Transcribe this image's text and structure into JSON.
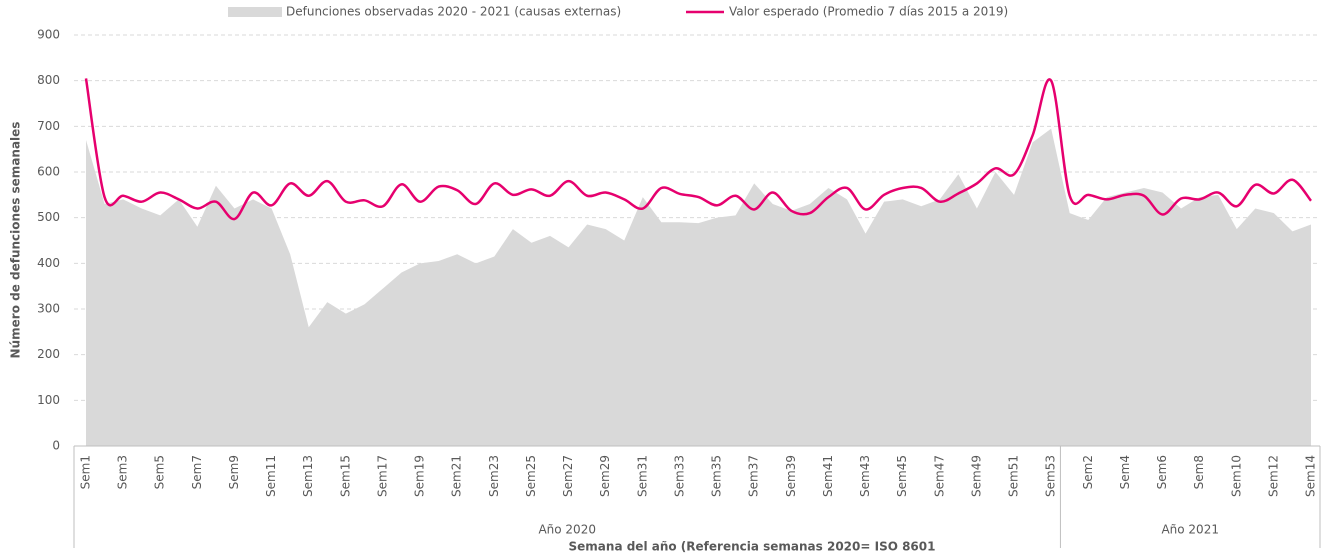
{
  "chart_data": {
    "type": "area_line",
    "y_label": "Número de defunciones semanales",
    "x_label": "Semana del año (Referencia semanas 2020= ISO 8601",
    "categories": [
      "Sem1",
      null,
      "Sem3",
      null,
      "Sem5",
      null,
      "Sem7",
      null,
      "Sem9",
      null,
      "Sem11",
      null,
      "Sem13",
      null,
      "Sem15",
      null,
      "Sem17",
      null,
      "Sem19",
      null,
      "Sem21",
      null,
      "Sem23",
      null,
      "Sem25",
      null,
      "Sem27",
      null,
      "Sem29",
      null,
      "Sem31",
      null,
      "Sem33",
      null,
      "Sem35",
      null,
      "Sem37",
      null,
      "Sem39",
      null,
      "Sem41",
      null,
      "Sem43",
      null,
      "Sem45",
      null,
      "Sem47",
      null,
      "Sem49",
      null,
      "Sem51",
      null,
      "Sem53",
      null,
      "Sem2",
      null,
      "Sem4",
      null,
      "Sem6",
      null,
      "Sem8",
      null,
      "Sem10",
      null,
      "Sem12",
      null,
      "Sem14"
    ],
    "x_groups": [
      {
        "label": "Año 2020",
        "size": 53
      },
      {
        "label": "Año 2021",
        "size": 14
      }
    ],
    "series": [
      {
        "name": "Defunciones observadas 2020 - 2021 (causas externas)",
        "kind": "area",
        "color": "#d9d9d9",
        "values": [
          670,
          530,
          540,
          520,
          505,
          540,
          480,
          570,
          520,
          540,
          520,
          420,
          260,
          315,
          290,
          310,
          345,
          380,
          400,
          405,
          420,
          400,
          415,
          475,
          445,
          460,
          435,
          485,
          475,
          450,
          545,
          490,
          490,
          488,
          500,
          505,
          575,
          530,
          515,
          530,
          565,
          540,
          465,
          535,
          540,
          525,
          540,
          595,
          520,
          600,
          550,
          665,
          695,
          510,
          495,
          545,
          555,
          565,
          555,
          520,
          545,
          550,
          475,
          520,
          510,
          470,
          485
        ]
      },
      {
        "name": "Valor esperado (Promedio 7 días 2015 a 2019)",
        "kind": "line",
        "color": "#e6006e",
        "values": [
          805,
          545,
          548,
          535,
          555,
          540,
          520,
          535,
          497,
          555,
          527,
          575,
          548,
          580,
          535,
          538,
          525,
          573,
          535,
          568,
          560,
          530,
          575,
          550,
          562,
          548,
          580,
          548,
          555,
          540,
          520,
          565,
          552,
          545,
          527,
          548,
          518,
          555,
          515,
          510,
          545,
          565,
          518,
          550,
          565,
          565,
          535,
          553,
          575,
          608,
          595,
          680,
          800,
          548,
          550,
          540,
          550,
          548,
          507,
          542,
          540,
          555,
          525,
          572,
          553,
          583,
          537
        ]
      }
    ],
    "ylim": [
      0,
      900
    ],
    "yticks": [
      0,
      100,
      200,
      300,
      400,
      500,
      600,
      700,
      800,
      900
    ],
    "grid": true
  }
}
